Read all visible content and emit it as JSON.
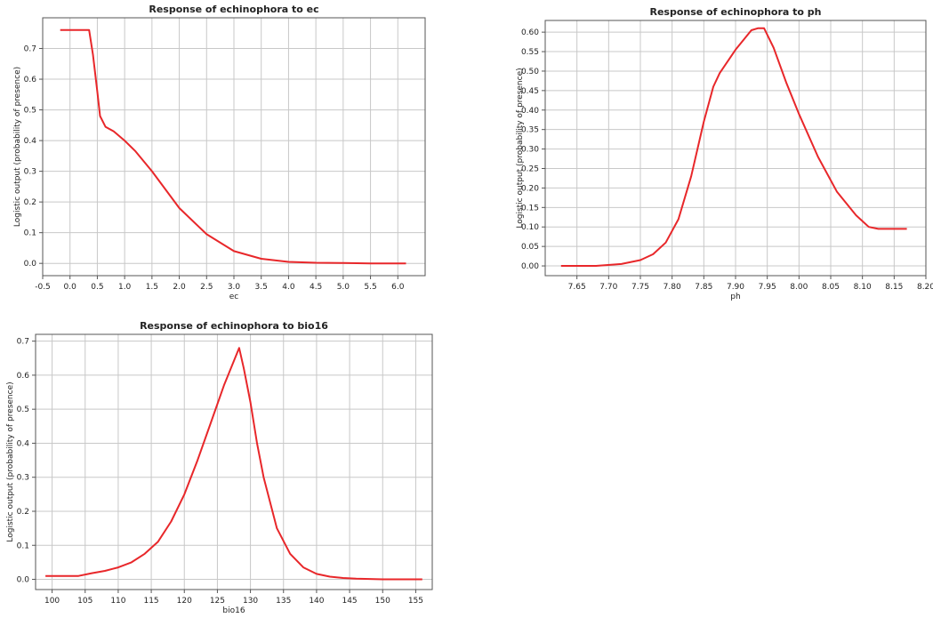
{
  "colors": {
    "curve": "#e8272a",
    "grid": "#c8c8c8",
    "axis": "#555555"
  },
  "chart_data": [
    {
      "type": "line",
      "title": "Response of echinophora to ec",
      "xlabel": "ec",
      "ylabel": "Logistic output (probability of presence)",
      "xlim": [
        -0.5,
        6.5
      ],
      "ylim": [
        -0.04,
        0.8
      ],
      "xticks": [
        -0.5,
        0.0,
        0.5,
        1.0,
        1.5,
        2.0,
        2.5,
        3.0,
        3.5,
        4.0,
        4.5,
        5.0,
        5.5,
        6.0
      ],
      "xtick_labels": [
        "-0.5",
        "0.0",
        "0.5",
        "1.0",
        "1.5",
        "2.0",
        "2.5",
        "3.0",
        "3.5",
        "4.0",
        "4.5",
        "5.0",
        "5.5",
        "6.0"
      ],
      "yticks": [
        0.0,
        0.1,
        0.2,
        0.3,
        0.4,
        0.5,
        0.6,
        0.7
      ],
      "ytick_labels": [
        "0.0",
        "0.1",
        "0.2",
        "0.3",
        "0.4",
        "0.5",
        "0.6",
        "0.7"
      ],
      "series": [
        {
          "x": [
            -0.18,
            0.35,
            0.42,
            0.5,
            0.55,
            0.65,
            0.8,
            1.0,
            1.2,
            1.5,
            2.0,
            2.5,
            3.0,
            3.5,
            4.0,
            4.5,
            5.0,
            5.5,
            6.0,
            6.15
          ],
          "y": [
            0.76,
            0.76,
            0.68,
            0.56,
            0.48,
            0.445,
            0.43,
            0.4,
            0.365,
            0.3,
            0.18,
            0.095,
            0.04,
            0.015,
            0.005,
            0.002,
            0.001,
            0.0,
            0.0,
            0.0
          ]
        }
      ]
    },
    {
      "type": "line",
      "title": "Response of echinophora to ph",
      "xlabel": "ph",
      "ylabel": "Logistic output (probability of presence)",
      "xlim": [
        7.6,
        8.2
      ],
      "ylim": [
        -0.025,
        0.63
      ],
      "xticks": [
        7.65,
        7.7,
        7.75,
        7.8,
        7.85,
        7.9,
        7.95,
        8.0,
        8.05,
        8.1,
        8.15,
        8.2
      ],
      "xtick_labels": [
        "7.65",
        "7.70",
        "7.75",
        "7.80",
        "7.85",
        "7.90",
        "7.95",
        "8.00",
        "8.05",
        "8.10",
        "8.15",
        "8.20"
      ],
      "yticks": [
        0.0,
        0.05,
        0.1,
        0.15,
        0.2,
        0.25,
        0.3,
        0.35,
        0.4,
        0.45,
        0.5,
        0.55,
        0.6
      ],
      "ytick_labels": [
        "0.00",
        "0.05",
        "0.10",
        "0.15",
        "0.20",
        "0.25",
        "0.30",
        "0.35",
        "0.40",
        "0.45",
        "0.50",
        "0.55",
        "0.60"
      ],
      "series": [
        {
          "x": [
            7.625,
            7.68,
            7.72,
            7.75,
            7.77,
            7.79,
            7.81,
            7.83,
            7.85,
            7.865,
            7.875,
            7.9,
            7.925,
            7.935,
            7.945,
            7.96,
            7.98,
            8.0,
            8.03,
            8.06,
            8.09,
            8.11,
            8.125,
            8.17
          ],
          "y": [
            0.0,
            0.0,
            0.005,
            0.015,
            0.03,
            0.06,
            0.12,
            0.23,
            0.37,
            0.46,
            0.495,
            0.555,
            0.605,
            0.61,
            0.61,
            0.56,
            0.47,
            0.39,
            0.28,
            0.19,
            0.13,
            0.1,
            0.095,
            0.095
          ]
        }
      ]
    },
    {
      "type": "line",
      "title": "Response of echinophora to bio16",
      "xlabel": "bio16",
      "ylabel": "Logistic output (probability of presence)",
      "xlim": [
        97.5,
        157.5
      ],
      "ylim": [
        -0.03,
        0.72
      ],
      "xticks": [
        100,
        105,
        110,
        115,
        120,
        125,
        130,
        135,
        140,
        145,
        150,
        155
      ],
      "xtick_labels": [
        "100",
        "105",
        "110",
        "115",
        "120",
        "125",
        "130",
        "135",
        "140",
        "145",
        "150",
        "155"
      ],
      "yticks": [
        0.0,
        0.1,
        0.2,
        0.3,
        0.4,
        0.5,
        0.6,
        0.7
      ],
      "ytick_labels": [
        "0.0",
        "0.1",
        "0.2",
        "0.3",
        "0.4",
        "0.5",
        "0.6",
        "0.7"
      ],
      "series": [
        {
          "x": [
            99,
            104,
            106,
            108,
            110,
            112,
            114,
            116,
            118,
            120,
            122,
            124,
            126,
            128.3,
            129,
            130,
            131,
            132,
            134,
            136,
            138,
            140,
            142,
            144,
            146,
            148,
            150,
            152,
            154,
            156
          ],
          "y": [
            0.01,
            0.01,
            0.018,
            0.025,
            0.035,
            0.05,
            0.075,
            0.11,
            0.17,
            0.25,
            0.35,
            0.46,
            0.57,
            0.68,
            0.62,
            0.52,
            0.4,
            0.3,
            0.15,
            0.075,
            0.035,
            0.016,
            0.008,
            0.004,
            0.002,
            0.001,
            0.0,
            0.0,
            0.0,
            0.0
          ]
        }
      ]
    }
  ]
}
